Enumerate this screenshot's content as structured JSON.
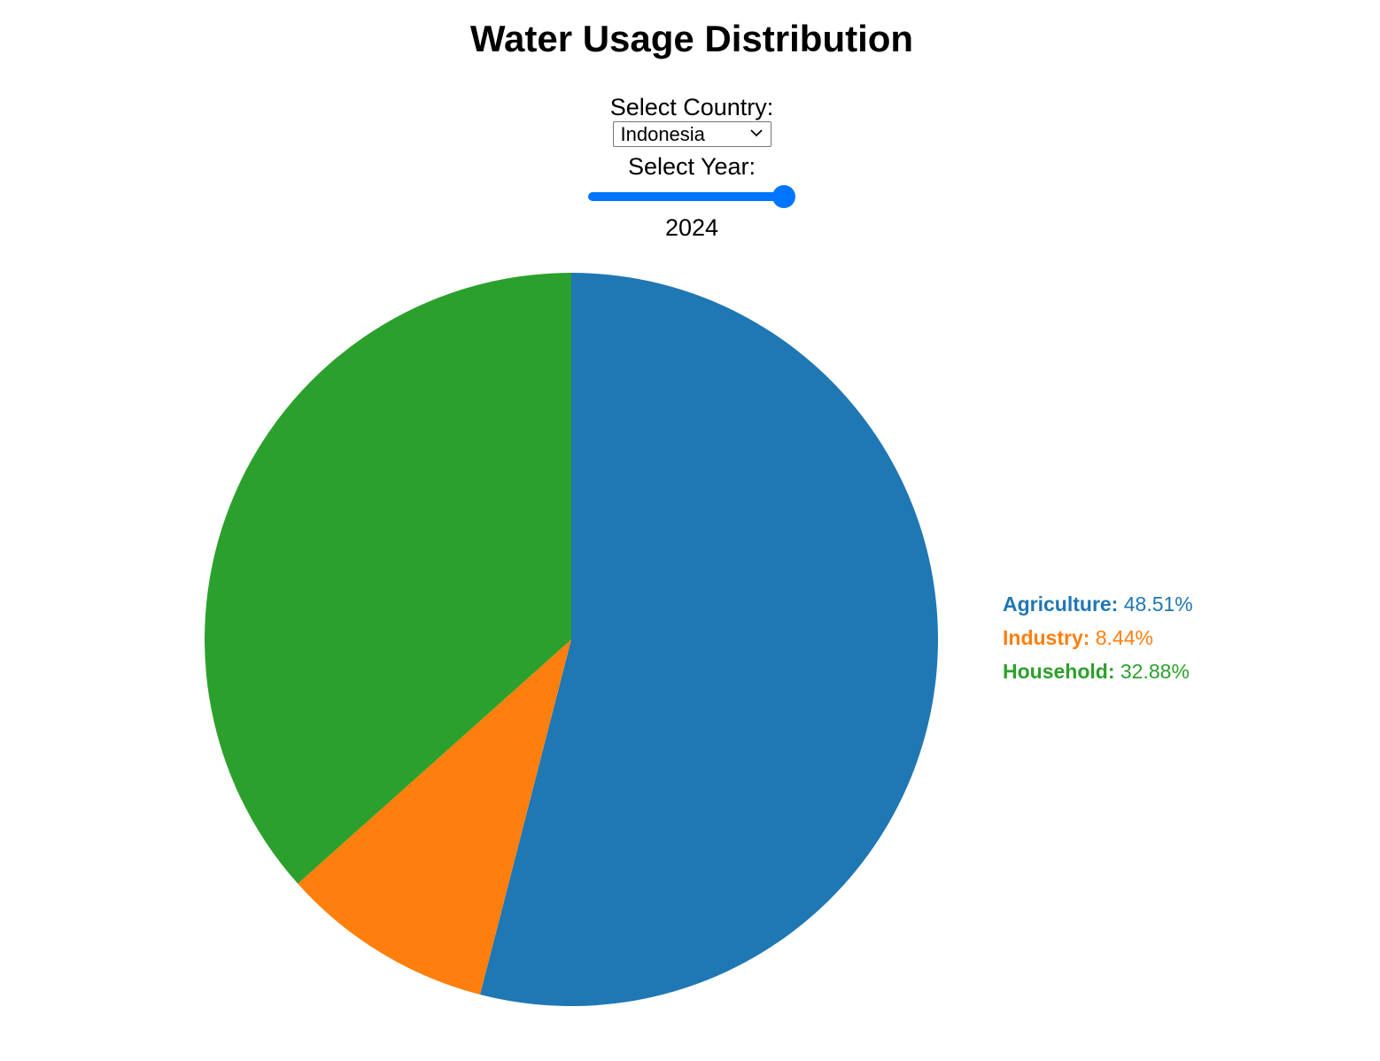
{
  "title": "Water Usage Distribution",
  "controls": {
    "country_label": "Select Country:",
    "country_selected": "Indonesia",
    "year_label": "Select Year:",
    "year_value": "2024",
    "slider_fraction": 1.0
  },
  "chart_data": {
    "type": "pie",
    "title": "Water Usage Distribution",
    "legend_position": "right",
    "slices": [
      {
        "label": "Agriculture",
        "value": 48.51,
        "display": "48.51%",
        "color": "#1f77b4"
      },
      {
        "label": "Industry",
        "value": 8.44,
        "display": "8.44%",
        "color": "#ff7f0e"
      },
      {
        "label": "Household",
        "value": 32.88,
        "display": "32.88%",
        "color": "#2ca02c"
      }
    ]
  }
}
